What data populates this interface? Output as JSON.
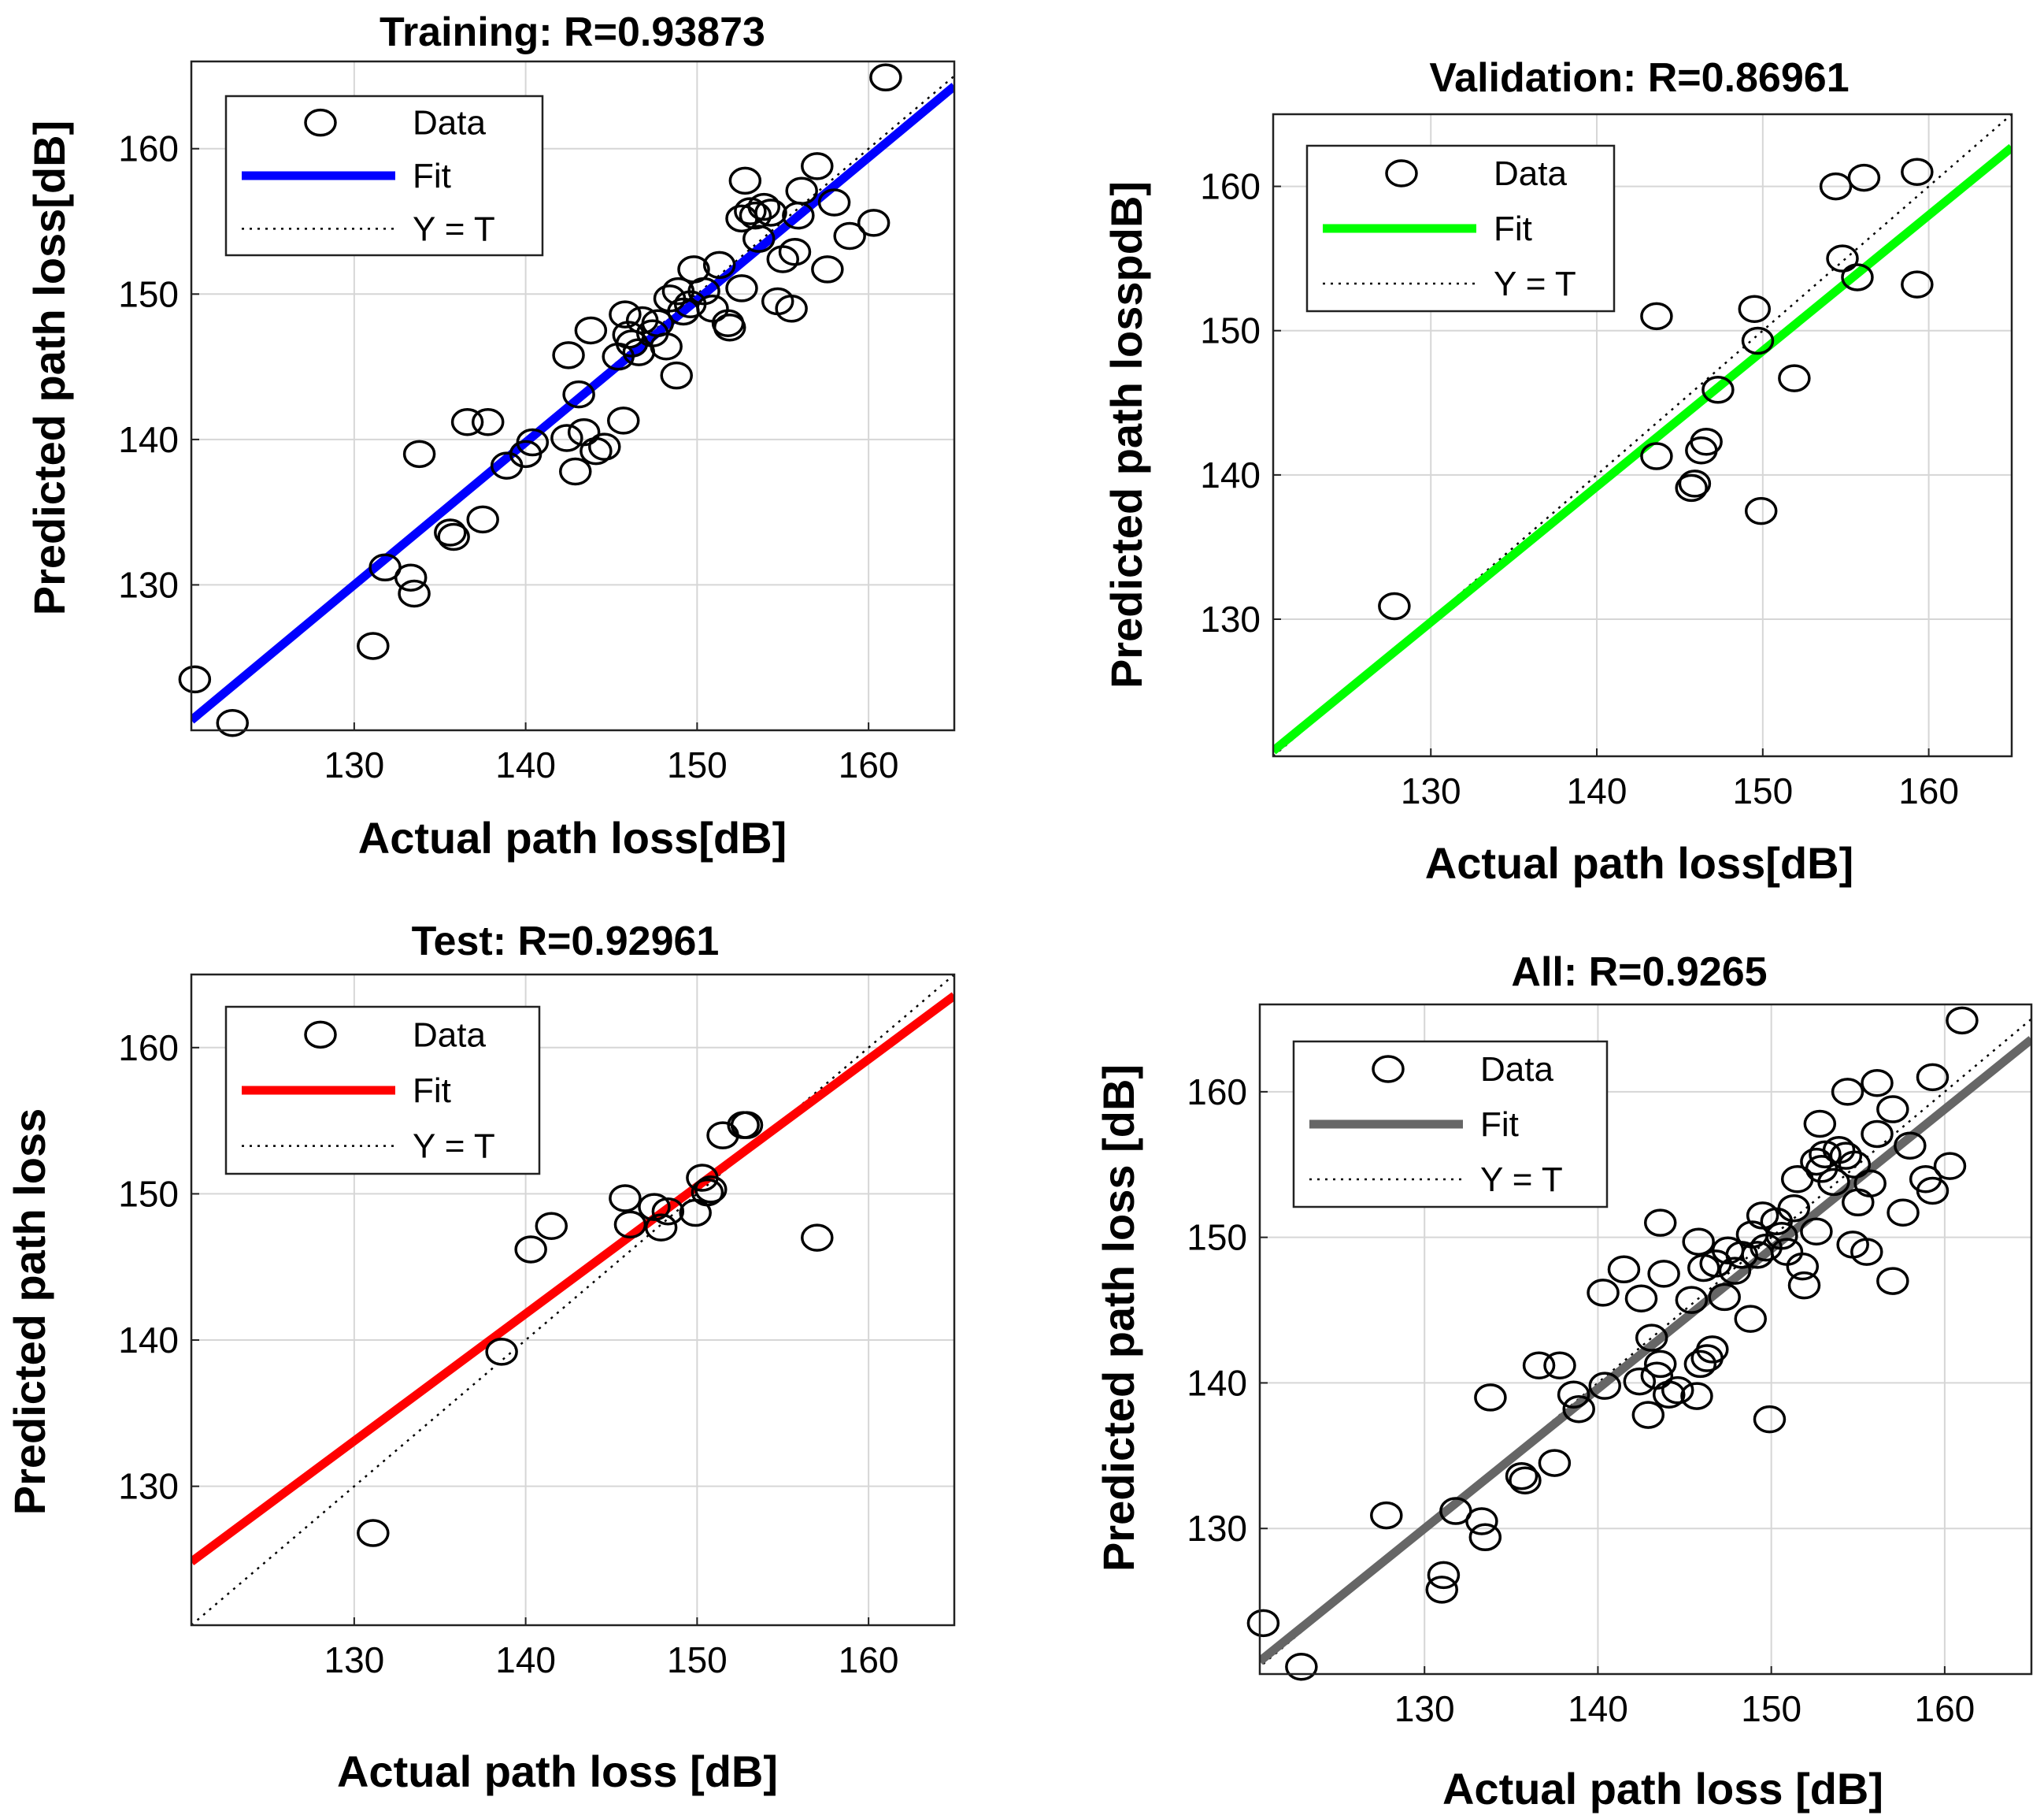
{
  "chart_data": [
    {
      "type": "scatter",
      "title": "Training: R=0.93873",
      "xlabel": "Actual path loss[dB]",
      "ylabel": "Predicted path loss[dB]",
      "xlim": [
        120.5,
        165
      ],
      "ylim": [
        120,
        166
      ],
      "xticks": [
        130,
        140,
        150,
        160
      ],
      "yticks": [
        130,
        140,
        150,
        160
      ],
      "grid": true,
      "fit": {
        "color": "#0000ff",
        "slope": 0.98,
        "intercept": 2.6
      },
      "legend": {
        "data": "Data",
        "fit": "Fit",
        "ref": "Y = T"
      },
      "points": [
        [
          120.7,
          123.5
        ],
        [
          122.9,
          120.5
        ],
        [
          131.1,
          125.8
        ],
        [
          131.8,
          131.2
        ],
        [
          133.3,
          130.5
        ],
        [
          133.5,
          129.4
        ],
        [
          133.8,
          139
        ],
        [
          135.6,
          133.6
        ],
        [
          135.8,
          133.3
        ],
        [
          136.6,
          141.2
        ],
        [
          137.5,
          134.5
        ],
        [
          137.8,
          141.2
        ],
        [
          138.9,
          138.2
        ],
        [
          140,
          139
        ],
        [
          140.4,
          139.8
        ],
        [
          142.4,
          140.1
        ],
        [
          142.5,
          145.8
        ],
        [
          142.9,
          137.8
        ],
        [
          143.1,
          143.1
        ],
        [
          143.4,
          140.5
        ],
        [
          143.8,
          147.5
        ],
        [
          144.1,
          139.2
        ],
        [
          144.6,
          139.5
        ],
        [
          145.4,
          145.7
        ],
        [
          145.7,
          141.3
        ],
        [
          145.8,
          148.6
        ],
        [
          146,
          147.2
        ],
        [
          146.2,
          146.6
        ],
        [
          146.8,
          148.2
        ],
        [
          146.6,
          146
        ],
        [
          147.4,
          147.3
        ],
        [
          147.7,
          148
        ],
        [
          148.2,
          146.4
        ],
        [
          148.4,
          149.7
        ],
        [
          148.8,
          144.4
        ],
        [
          148.9,
          150.2
        ],
        [
          149.2,
          148.8
        ],
        [
          149.6,
          149.3
        ],
        [
          149.8,
          151.7
        ],
        [
          150.4,
          150.2
        ],
        [
          150.9,
          149
        ],
        [
          151.3,
          152
        ],
        [
          151.8,
          148
        ],
        [
          151.9,
          147.7
        ],
        [
          152.6,
          150.4
        ],
        [
          152.6,
          155.2
        ],
        [
          152.8,
          157.8
        ],
        [
          153.1,
          155.7
        ],
        [
          153.4,
          155.4
        ],
        [
          153.6,
          153.8
        ],
        [
          153.9,
          156
        ],
        [
          154.3,
          155.6
        ],
        [
          154.7,
          149.5
        ],
        [
          155,
          152.4
        ],
        [
          155.5,
          149
        ],
        [
          155.7,
          152.9
        ],
        [
          155.9,
          155.4
        ],
        [
          156.1,
          157.1
        ],
        [
          157,
          158.8
        ],
        [
          157.6,
          151.7
        ],
        [
          158,
          156.3
        ],
        [
          158.9,
          154
        ],
        [
          160.3,
          154.9
        ],
        [
          161,
          164.9
        ]
      ]
    },
    {
      "type": "scatter",
      "title": "Validation: R=0.86961",
      "xlabel": "Actual path loss[dB]",
      "ylabel": "Predicted path losspdB]",
      "xlim": [
        120.5,
        165
      ],
      "ylim": [
        120.5,
        165
      ],
      "xticks": [
        130,
        140,
        150,
        160
      ],
      "yticks": [
        130,
        140,
        150,
        160
      ],
      "grid": true,
      "fit": {
        "color": "#00ff00",
        "slope": 0.94,
        "intercept": 7.6
      },
      "legend": {
        "data": "Data",
        "fit": "Fit",
        "ref": "Y = T"
      },
      "points": [
        [
          127.8,
          130.9
        ],
        [
          143.6,
          141.3
        ],
        [
          143.6,
          151
        ],
        [
          145.7,
          139.1
        ],
        [
          145.9,
          139.4
        ],
        [
          146.3,
          141.7
        ],
        [
          146.6,
          142.3
        ],
        [
          147.3,
          145.9
        ],
        [
          149.5,
          151.5
        ],
        [
          149.7,
          149.3
        ],
        [
          149.9,
          137.5
        ],
        [
          151.9,
          146.7
        ],
        [
          154.4,
          160
        ],
        [
          154.8,
          155
        ],
        [
          155.7,
          153.7
        ],
        [
          156.1,
          160.6
        ],
        [
          159.3,
          161
        ],
        [
          159.3,
          153.2
        ]
      ]
    },
    {
      "type": "scatter",
      "title": "Test: R=0.92961",
      "xlabel": "Actual  path loss [dB]",
      "ylabel": "Predicted path loss",
      "xlim": [
        120.5,
        165
      ],
      "ylim": [
        120.5,
        165
      ],
      "xticks": [
        130,
        140,
        150,
        160
      ],
      "yticks": [
        130,
        140,
        150,
        160
      ],
      "grid": true,
      "fit": {
        "color": "#ff0000",
        "slope": 0.87,
        "intercept": 20
      },
      "legend": {
        "data": "Data",
        "fit": "Fit",
        "ref": "Y = T"
      },
      "points": [
        [
          131.1,
          126.8
        ],
        [
          138.6,
          139.2
        ],
        [
          140.3,
          146.2
        ],
        [
          141.5,
          147.8
        ],
        [
          145.8,
          149.7
        ],
        [
          146.1,
          147.9
        ],
        [
          147.5,
          149.1
        ],
        [
          147.9,
          147.7
        ],
        [
          148.3,
          148.8
        ],
        [
          149.9,
          148.7
        ],
        [
          150.3,
          151.1
        ],
        [
          150.6,
          150.1
        ],
        [
          150.8,
          150.3
        ],
        [
          151.5,
          154
        ],
        [
          152.7,
          154.7
        ],
        [
          152.9,
          154.7
        ],
        [
          157,
          147
        ]
      ]
    },
    {
      "type": "scatter",
      "title": "All: R=0.9265",
      "xlabel": "Actual path loss [dB]",
      "ylabel": "Predicted path loss [dB]",
      "xlim": [
        120.5,
        165
      ],
      "ylim": [
        120,
        166
      ],
      "xticks": [
        130,
        140,
        150,
        160
      ],
      "yticks": [
        130,
        140,
        150,
        160
      ],
      "grid": true,
      "fit": {
        "color": "#666666",
        "slope": 0.96,
        "intercept": 5.2
      },
      "legend": {
        "data": "Data",
        "fit": "Fit",
        "ref": "Y = T"
      },
      "points": [
        [
          120.7,
          123.5
        ],
        [
          122.9,
          120.5
        ],
        [
          127.8,
          130.9
        ],
        [
          131,
          125.8
        ],
        [
          131.1,
          126.8
        ],
        [
          131.8,
          131.2
        ],
        [
          133.3,
          130.5
        ],
        [
          133.5,
          129.4
        ],
        [
          133.8,
          139
        ],
        [
          135.6,
          133.6
        ],
        [
          135.8,
          133.3
        ],
        [
          136.6,
          141.2
        ],
        [
          137.5,
          134.5
        ],
        [
          137.8,
          141.2
        ],
        [
          138.6,
          139.2
        ],
        [
          138.9,
          138.2
        ],
        [
          140.3,
          146.2
        ],
        [
          140.4,
          139.8
        ],
        [
          141.5,
          147.8
        ],
        [
          142.4,
          140.1
        ],
        [
          142.5,
          145.8
        ],
        [
          142.9,
          137.8
        ],
        [
          143.1,
          143.1
        ],
        [
          143.4,
          140.5
        ],
        [
          143.6,
          151
        ],
        [
          143.6,
          141.3
        ],
        [
          143.8,
          147.5
        ],
        [
          144.1,
          139.2
        ],
        [
          144.6,
          139.5
        ],
        [
          145.4,
          145.7
        ],
        [
          145.7,
          139.1
        ],
        [
          145.8,
          149.7
        ],
        [
          145.9,
          141.3
        ],
        [
          146.1,
          147.9
        ],
        [
          146.3,
          141.7
        ],
        [
          146.6,
          142.3
        ],
        [
          146.8,
          148.2
        ],
        [
          147.3,
          145.9
        ],
        [
          147.5,
          149.1
        ],
        [
          147.9,
          147.7
        ],
        [
          148.3,
          148.8
        ],
        [
          148.8,
          144.4
        ],
        [
          148.9,
          150.2
        ],
        [
          149.2,
          148.8
        ],
        [
          149.5,
          151.5
        ],
        [
          149.7,
          149.3
        ],
        [
          149.9,
          137.5
        ],
        [
          150.3,
          151.1
        ],
        [
          150.6,
          150.1
        ],
        [
          150.9,
          149
        ],
        [
          151.3,
          152
        ],
        [
          151.5,
          154
        ],
        [
          151.8,
          148
        ],
        [
          151.9,
          146.7
        ],
        [
          152.6,
          150.4
        ],
        [
          152.6,
          155.2
        ],
        [
          152.8,
          157.8
        ],
        [
          152.9,
          154.7
        ],
        [
          153.1,
          155.7
        ],
        [
          153.6,
          153.8
        ],
        [
          153.9,
          156
        ],
        [
          154.3,
          155.6
        ],
        [
          154.4,
          160
        ],
        [
          154.7,
          149.5
        ],
        [
          154.8,
          155
        ],
        [
          155,
          152.4
        ],
        [
          155.5,
          149
        ],
        [
          155.7,
          153.7
        ],
        [
          156.1,
          160.6
        ],
        [
          156.1,
          157.1
        ],
        [
          157,
          158.8
        ],
        [
          157,
          147
        ],
        [
          157.6,
          151.7
        ],
        [
          158,
          156.3
        ],
        [
          158.9,
          154
        ],
        [
          159.3,
          161
        ],
        [
          159.3,
          153.2
        ],
        [
          160.3,
          154.9
        ],
        [
          161,
          164.9
        ]
      ]
    }
  ]
}
